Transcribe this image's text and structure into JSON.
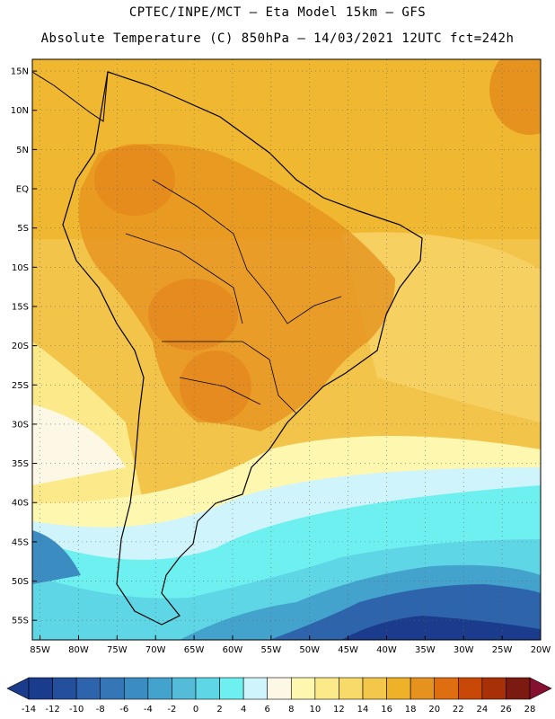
{
  "header": {
    "line1": "CPTEC/INPE/MCT –  Eta Model 15km – GFS",
    "line2": "Absolute Temperature (C) 850hPa – 14/03/2021 12UTC fct=242h"
  },
  "axes": {
    "lat_labels": [
      "15N",
      "10N",
      "5N",
      "EQ",
      "5S",
      "10S",
      "15S",
      "20S",
      "25S",
      "30S",
      "35S",
      "40S",
      "45S",
      "50S",
      "55S"
    ],
    "lat_values": [
      15,
      10,
      5,
      0,
      -5,
      -10,
      -15,
      -20,
      -25,
      -30,
      -35,
      -40,
      -45,
      -50,
      -55
    ],
    "lon_labels": [
      "85W",
      "80W",
      "75W",
      "70W",
      "65W",
      "60W",
      "55W",
      "50W",
      "45W",
      "40W",
      "35W",
      "30W",
      "25W",
      "20W"
    ],
    "lon_values": [
      -85,
      -80,
      -75,
      -70,
      -65,
      -60,
      -55,
      -50,
      -45,
      -40,
      -35,
      -30,
      -25,
      -20
    ],
    "lat_range": [
      -57.5,
      16.5
    ],
    "lon_range": [
      -86,
      -20
    ]
  },
  "colorbar": {
    "labels": [
      "-14",
      "-12",
      "-10",
      "-8",
      "-6",
      "-4",
      "-2",
      "0",
      "2",
      "4",
      "6",
      "8",
      "10",
      "12",
      "14",
      "16",
      "18",
      "20",
      "22",
      "24",
      "26",
      "28"
    ],
    "colors": [
      "#1b3c8c",
      "#234f9c",
      "#2d64ac",
      "#3577b6",
      "#3b8cc0",
      "#44a3cc",
      "#54bcd8",
      "#5fd6e6",
      "#6ff0f0",
      "#cff4fb",
      "#fdf8e6",
      "#fdf7b0",
      "#fbe98a",
      "#f8da6a",
      "#f3c84a",
      "#eeb228",
      "#e6921e",
      "#df6e10",
      "#c84808",
      "#a83006",
      "#7a1a10"
    ],
    "low_color": "#1b3c8c",
    "high_color": "#861030"
  }
}
